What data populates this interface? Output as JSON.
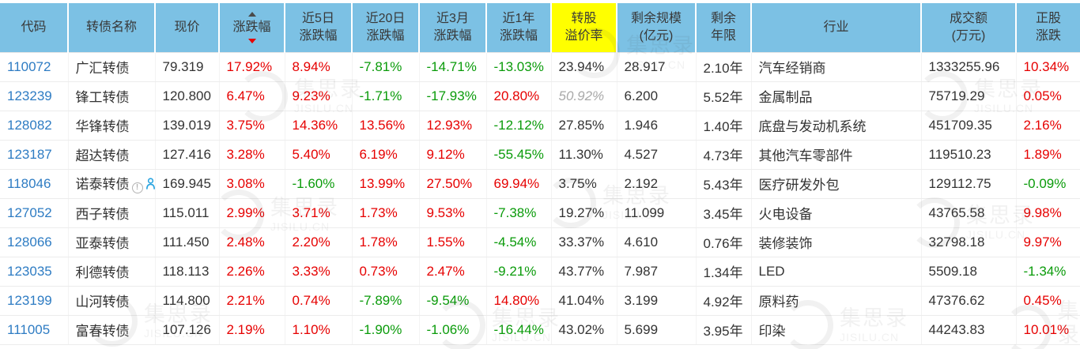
{
  "colors": {
    "header_bg": "#7cc1e4",
    "highlight": "#ffff00",
    "up_red": "#e60000",
    "down_green": "#0a9b0a",
    "code_blue": "#2e7cc3",
    "muted_gray": "#a9a9a9"
  },
  "watermark": {
    "title": "集思录",
    "subtitle": "JISILU.CN"
  },
  "table": {
    "columns": [
      {
        "id": "code",
        "label": "代码"
      },
      {
        "id": "name",
        "label": "转债名称"
      },
      {
        "id": "price",
        "label": "现价"
      },
      {
        "id": "change",
        "label": "涨跌幅",
        "sorted": true
      },
      {
        "id": "change-5d",
        "label": "近5日\n涨跌幅"
      },
      {
        "id": "change-20d",
        "label": "近20日\n涨跌幅"
      },
      {
        "id": "change-3m",
        "label": "近3月\n涨跌幅"
      },
      {
        "id": "change-1y",
        "label": "近1年\n涨跌幅"
      },
      {
        "id": "premium",
        "label": "转股\n溢价率",
        "highlight": true
      },
      {
        "id": "remaining-size",
        "label": "剩余规模\n(亿元)"
      },
      {
        "id": "remaining-years",
        "label": "剩余\n年限"
      },
      {
        "id": "industry",
        "label": "行业"
      },
      {
        "id": "turnover",
        "label": "成交额\n(万元)"
      },
      {
        "id": "stock-change",
        "label": "正股\n涨跌"
      }
    ],
    "rows": [
      {
        "cells": [
          "110072",
          "广汇转债",
          "79.319",
          {
            "t": "17.92%",
            "c": "red"
          },
          {
            "t": "8.94%",
            "c": "red"
          },
          {
            "t": "-7.81%",
            "c": "green"
          },
          {
            "t": "-14.71%",
            "c": "green"
          },
          {
            "t": "-13.03%",
            "c": "green"
          },
          {
            "t": "23.94%",
            "c": "dark"
          },
          "28.917",
          "2.10年",
          "汽车经销商",
          "1333255.96",
          {
            "t": "10.34%",
            "c": "red"
          }
        ]
      },
      {
        "cells": [
          "123239",
          "锋工转债",
          "120.800",
          {
            "t": "6.47%",
            "c": "red"
          },
          {
            "t": "9.23%",
            "c": "red"
          },
          {
            "t": "-1.71%",
            "c": "green"
          },
          {
            "t": "-17.93%",
            "c": "green"
          },
          {
            "t": "20.80%",
            "c": "red"
          },
          {
            "t": "50.92%",
            "c": "gray"
          },
          "6.200",
          "5.52年",
          "金属制品",
          "75719.29",
          {
            "t": "0.05%",
            "c": "red"
          }
        ]
      },
      {
        "cells": [
          "128082",
          "华锋转债",
          "139.019",
          {
            "t": "3.75%",
            "c": "red"
          },
          {
            "t": "14.36%",
            "c": "red"
          },
          {
            "t": "13.56%",
            "c": "red"
          },
          {
            "t": "12.93%",
            "c": "red"
          },
          {
            "t": "-12.12%",
            "c": "green"
          },
          {
            "t": "27.85%",
            "c": "dark"
          },
          "1.946",
          "1.40年",
          "底盘与发动机系统",
          "451709.35",
          {
            "t": "2.16%",
            "c": "red"
          }
        ]
      },
      {
        "cells": [
          "123187",
          "超达转债",
          "127.416",
          {
            "t": "3.28%",
            "c": "red"
          },
          {
            "t": "5.40%",
            "c": "red"
          },
          {
            "t": "6.19%",
            "c": "red"
          },
          {
            "t": "9.12%",
            "c": "red"
          },
          {
            "t": "-55.45%",
            "c": "green"
          },
          {
            "t": "11.30%",
            "c": "dark"
          },
          "4.527",
          "4.73年",
          "其他汽车零部件",
          "119510.23",
          {
            "t": "1.89%",
            "c": "red"
          }
        ]
      },
      {
        "cells": [
          "118046",
          "诺泰转债",
          "169.945",
          {
            "t": "3.08%",
            "c": "red"
          },
          {
            "t": "-1.60%",
            "c": "green"
          },
          {
            "t": "13.99%",
            "c": "red"
          },
          {
            "t": "27.50%",
            "c": "red"
          },
          {
            "t": "69.94%",
            "c": "red"
          },
          {
            "t": "3.75%",
            "c": "dark"
          },
          "2.192",
          "5.43年",
          "医疗研发外包",
          "129112.75",
          {
            "t": "-0.09%",
            "c": "green"
          }
        ],
        "name_icons": [
          "info-icon",
          "person-icon"
        ]
      },
      {
        "cells": [
          "127052",
          "西子转债",
          "115.011",
          {
            "t": "2.99%",
            "c": "red"
          },
          {
            "t": "3.71%",
            "c": "red"
          },
          {
            "t": "1.73%",
            "c": "red"
          },
          {
            "t": "9.53%",
            "c": "red"
          },
          {
            "t": "-7.38%",
            "c": "green"
          },
          {
            "t": "19.27%",
            "c": "dark"
          },
          "11.099",
          "3.45年",
          "火电设备",
          "43765.58",
          {
            "t": "9.98%",
            "c": "red"
          }
        ]
      },
      {
        "cells": [
          "128066",
          "亚泰转债",
          "111.450",
          {
            "t": "2.48%",
            "c": "red"
          },
          {
            "t": "2.20%",
            "c": "red"
          },
          {
            "t": "1.78%",
            "c": "red"
          },
          {
            "t": "1.55%",
            "c": "red"
          },
          {
            "t": "-4.54%",
            "c": "green"
          },
          {
            "t": "33.37%",
            "c": "dark"
          },
          "4.610",
          "0.76年",
          "装修装饰",
          "32798.18",
          {
            "t": "9.97%",
            "c": "red"
          }
        ]
      },
      {
        "cells": [
          "123035",
          "利德转债",
          "118.113",
          {
            "t": "2.26%",
            "c": "red"
          },
          {
            "t": "3.33%",
            "c": "red"
          },
          {
            "t": "0.73%",
            "c": "red"
          },
          {
            "t": "2.47%",
            "c": "red"
          },
          {
            "t": "-9.21%",
            "c": "green"
          },
          {
            "t": "43.77%",
            "c": "dark"
          },
          "7.987",
          "1.34年",
          "LED",
          "5509.18",
          {
            "t": "-1.34%",
            "c": "green"
          }
        ]
      },
      {
        "cells": [
          "123199",
          "山河转债",
          "114.800",
          {
            "t": "2.21%",
            "c": "red"
          },
          {
            "t": "0.74%",
            "c": "red"
          },
          {
            "t": "-7.89%",
            "c": "green"
          },
          {
            "t": "-9.54%",
            "c": "green"
          },
          {
            "t": "14.80%",
            "c": "red"
          },
          {
            "t": "41.04%",
            "c": "dark"
          },
          "3.199",
          "4.92年",
          "原料药",
          "47376.62",
          {
            "t": "0.45%",
            "c": "red"
          }
        ]
      },
      {
        "cells": [
          "111005",
          "富春转债",
          "107.126",
          {
            "t": "2.19%",
            "c": "red"
          },
          {
            "t": "1.10%",
            "c": "red"
          },
          {
            "t": "-1.90%",
            "c": "green"
          },
          {
            "t": "-1.06%",
            "c": "green"
          },
          {
            "t": "-16.44%",
            "c": "green"
          },
          {
            "t": "43.02%",
            "c": "dark"
          },
          "5.699",
          "3.95年",
          "印染",
          "44243.83",
          {
            "t": "10.01%",
            "c": "red"
          }
        ]
      }
    ]
  }
}
